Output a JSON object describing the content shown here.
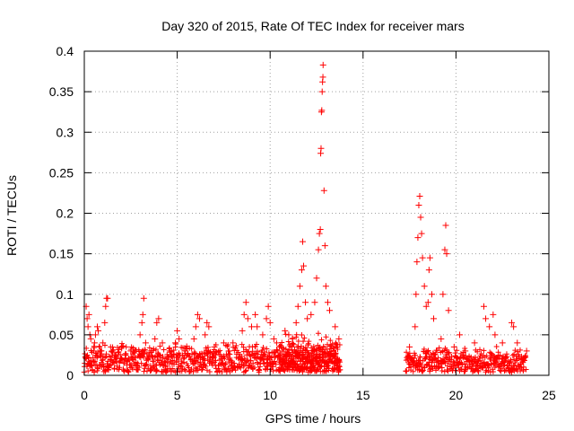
{
  "chart_data": {
    "type": "scatter",
    "title": "Day 320 of 2015, Rate Of TEC Index for receiver mars",
    "xlabel": "GPS time / hours",
    "ylabel": "ROTI / TECUs",
    "xlim": [
      0,
      25
    ],
    "ylim": [
      0,
      0.4
    ],
    "xticks": [
      0,
      5,
      10,
      15,
      20,
      25
    ],
    "yticks": [
      0,
      0.05,
      0.1,
      0.15,
      0.2,
      0.25,
      0.3,
      0.35,
      0.4
    ],
    "ytick_labels": [
      "0",
      "0.05",
      "0.1",
      "0.15",
      "0.2",
      "0.25",
      "0.3",
      "0.35",
      "0.4"
    ],
    "xtick_labels": [
      "0",
      "5",
      "10",
      "15",
      "20",
      "25"
    ],
    "grid": true,
    "marker": "+",
    "series": [
      {
        "color": "#ff0000",
        "points": [
          [
            0.1,
            0.085
          ],
          [
            0.15,
            0.07
          ],
          [
            0.2,
            0.06
          ],
          [
            0.25,
            0.075
          ],
          [
            0.3,
            0.05
          ],
          [
            0.35,
            0.045
          ],
          [
            0.5,
            0.03
          ],
          [
            0.55,
            0.04
          ],
          [
            0.6,
            0.05
          ],
          [
            0.7,
            0.06
          ],
          [
            0.75,
            0.055
          ],
          [
            0.9,
            0.03
          ],
          [
            1.0,
            0.04
          ],
          [
            1.1,
            0.065
          ],
          [
            1.15,
            0.085
          ],
          [
            1.2,
            0.095
          ],
          [
            1.25,
            0.095
          ],
          [
            1.5,
            0.03
          ],
          [
            2.0,
            0.035
          ],
          [
            2.2,
            0.025
          ],
          [
            2.5,
            0.03
          ],
          [
            3.0,
            0.05
          ],
          [
            3.1,
            0.065
          ],
          [
            3.15,
            0.075
          ],
          [
            3.2,
            0.095
          ],
          [
            3.3,
            0.04
          ],
          [
            3.6,
            0.03
          ],
          [
            3.8,
            0.045
          ],
          [
            3.9,
            0.065
          ],
          [
            4.0,
            0.07
          ],
          [
            4.2,
            0.04
          ],
          [
            4.6,
            0.03
          ],
          [
            4.9,
            0.04
          ],
          [
            5.0,
            0.055
          ],
          [
            5.1,
            0.045
          ],
          [
            5.4,
            0.03
          ],
          [
            5.9,
            0.045
          ],
          [
            6.0,
            0.06
          ],
          [
            6.1,
            0.075
          ],
          [
            6.2,
            0.07
          ],
          [
            6.5,
            0.05
          ],
          [
            6.6,
            0.065
          ],
          [
            6.7,
            0.06
          ],
          [
            7.0,
            0.035
          ],
          [
            7.5,
            0.04
          ],
          [
            7.8,
            0.03
          ],
          [
            8.0,
            0.04
          ],
          [
            8.5,
            0.055
          ],
          [
            8.6,
            0.075
          ],
          [
            8.7,
            0.09
          ],
          [
            8.8,
            0.07
          ],
          [
            9.0,
            0.06
          ],
          [
            9.2,
            0.075
          ],
          [
            9.3,
            0.06
          ],
          [
            9.6,
            0.05
          ],
          [
            9.8,
            0.07
          ],
          [
            9.9,
            0.085
          ],
          [
            10.0,
            0.065
          ],
          [
            10.2,
            0.045
          ],
          [
            10.5,
            0.035
          ],
          [
            10.8,
            0.055
          ],
          [
            11.0,
            0.05
          ],
          [
            11.2,
            0.045
          ],
          [
            11.4,
            0.065
          ],
          [
            11.5,
            0.085
          ],
          [
            11.6,
            0.11
          ],
          [
            11.7,
            0.13
          ],
          [
            11.75,
            0.165
          ],
          [
            11.8,
            0.135
          ],
          [
            11.9,
            0.09
          ],
          [
            12.0,
            0.07
          ],
          [
            12.2,
            0.075
          ],
          [
            12.4,
            0.09
          ],
          [
            12.5,
            0.12
          ],
          [
            12.6,
            0.155
          ],
          [
            12.65,
            0.175
          ],
          [
            12.7,
            0.18
          ],
          [
            12.72,
            0.274
          ],
          [
            12.74,
            0.28
          ],
          [
            12.76,
            0.325
          ],
          [
            12.78,
            0.327
          ],
          [
            12.8,
            0.35
          ],
          [
            12.82,
            0.362
          ],
          [
            12.84,
            0.368
          ],
          [
            12.85,
            0.383
          ],
          [
            12.9,
            0.228
          ],
          [
            12.95,
            0.16
          ],
          [
            13.0,
            0.11
          ],
          [
            13.1,
            0.09
          ],
          [
            13.2,
            0.08
          ],
          [
            13.5,
            0.06
          ],
          [
            13.7,
            0.045
          ],
          [
            17.5,
            0.035
          ],
          [
            17.8,
            0.06
          ],
          [
            17.85,
            0.1
          ],
          [
            17.9,
            0.14
          ],
          [
            17.95,
            0.17
          ],
          [
            18.0,
            0.21
          ],
          [
            18.05,
            0.221
          ],
          [
            18.1,
            0.195
          ],
          [
            18.15,
            0.175
          ],
          [
            18.2,
            0.145
          ],
          [
            18.3,
            0.11
          ],
          [
            18.4,
            0.085
          ],
          [
            18.5,
            0.09
          ],
          [
            18.55,
            0.13
          ],
          [
            18.6,
            0.145
          ],
          [
            18.7,
            0.1
          ],
          [
            18.8,
            0.07
          ],
          [
            19.2,
            0.045
          ],
          [
            19.3,
            0.1
          ],
          [
            19.4,
            0.155
          ],
          [
            19.45,
            0.185
          ],
          [
            19.5,
            0.15
          ],
          [
            19.6,
            0.08
          ],
          [
            19.9,
            0.035
          ],
          [
            20.2,
            0.05
          ],
          [
            20.5,
            0.03
          ],
          [
            21.0,
            0.04
          ],
          [
            21.5,
            0.085
          ],
          [
            21.6,
            0.07
          ],
          [
            21.8,
            0.06
          ],
          [
            22.0,
            0.075
          ],
          [
            22.1,
            0.05
          ],
          [
            22.5,
            0.04
          ],
          [
            23.0,
            0.065
          ],
          [
            23.1,
            0.06
          ],
          [
            23.3,
            0.04
          ],
          [
            23.8,
            0.03
          ]
        ]
      }
    ]
  }
}
